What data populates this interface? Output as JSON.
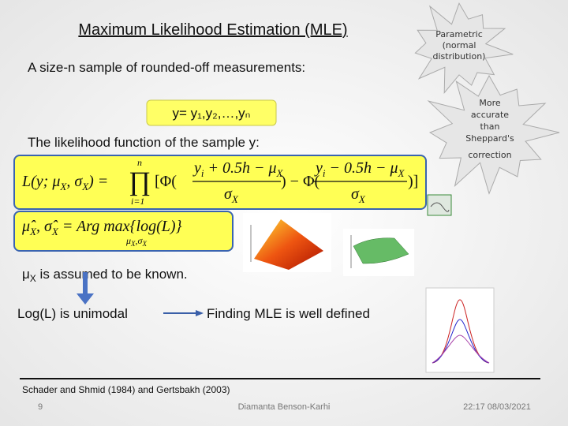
{
  "header": {
    "title": "Maximum Likelihood Estimation (MLE)",
    "subtitle": "A size-n sample of rounded-off measurements:"
  },
  "callouts": {
    "parametric": [
      "Parametric",
      "(normal",
      "distribution)"
    ],
    "accuracy": [
      "More",
      "accurate",
      "than",
      "Sheppard's",
      "correction"
    ]
  },
  "sample": "y= y₁,y₂,…,yₙ",
  "likelihood_intro": "The likelihood function of the sample y:",
  "likelihood_formula": [
    "L(y; μ",
    "X",
    ", σ",
    "X",
    ") =",
    "∏",
    "n",
    "i=1",
    "[Φ(",
    "y",
    "i",
    " + 0.5h − μ",
    "X",
    "σ",
    "X",
    ") − Φ(",
    "y",
    "i",
    " − 0.5h − μ",
    "X",
    "σ",
    "X",
    ")]"
  ],
  "argmax_formula": [
    "μ̂",
    "X",
    ", σ̂",
    "X",
    " = Arg max{log(L)}",
    "μ",
    "X",
    ",σ",
    "X"
  ],
  "assumption": [
    "μ",
    "X",
    " is assumed to be known."
  ],
  "unimodal": "Log(L) is unimodal",
  "conclusion": "Finding MLE is well defined",
  "reference": "Schader and Shmid (1984) and Gertsbakh (2003)",
  "footer": {
    "page": "9",
    "author": "Diamanta Benson-Karhi",
    "date": "22:17 08/03/2021"
  }
}
